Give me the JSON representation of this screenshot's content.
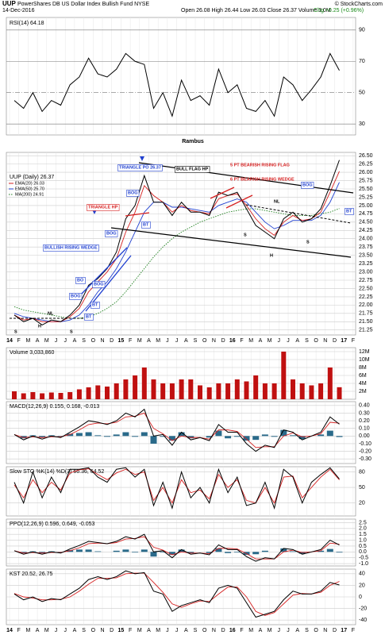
{
  "header": {
    "symbol": "UUP",
    "name": "PowerShares DB US Dollar Index Bullish Fund NYSE",
    "date": "14-Dec-2016",
    "quote": "Open 26.08 High 26.44 Low 26.03 Close 26.37 Volume 3.0M",
    "change": "Chg +0.25 (+0.96%)",
    "copyright": "© StockCharts.com"
  },
  "chart_data": [
    {
      "type": "line",
      "title": "RSI(14) 64.18",
      "annotation": "Rambus",
      "color": "#000000",
      "grid": true,
      "values": [
        45,
        40,
        50,
        38,
        45,
        42,
        55,
        60,
        72,
        62,
        60,
        65,
        75,
        70,
        68,
        40,
        50,
        35,
        58,
        45,
        48,
        42,
        65,
        50,
        55,
        40,
        38,
        45,
        35,
        60,
        55,
        45,
        52,
        60,
        75,
        64.18
      ],
      "ylim": [
        23,
        98
      ],
      "yticks": [
        30,
        50,
        70,
        90
      ]
    },
    {
      "type": "line",
      "title": "UUP (Daily) 26.37",
      "grid": true,
      "series": [
        {
          "name": "UUP (Daily) 26.37",
          "color": "#000000",
          "values": [
            21.7,
            21.5,
            21.6,
            21.4,
            21.55,
            21.5,
            21.7,
            22.0,
            22.6,
            22.8,
            23.1,
            23.6,
            24.6,
            25.0,
            25.9,
            25.1,
            25.1,
            24.7,
            25.1,
            24.8,
            24.8,
            24.7,
            25.4,
            25.3,
            25.4,
            24.9,
            24.4,
            24.2,
            24.0,
            24.6,
            24.8,
            24.5,
            24.6,
            24.9,
            25.6,
            26.37
          ]
        },
        {
          "name": "EMA(20) 26.03",
          "color": "#d62020",
          "values": [
            21.7,
            21.55,
            21.6,
            21.5,
            21.5,
            21.5,
            21.65,
            21.9,
            22.4,
            22.7,
            23.0,
            23.4,
            24.2,
            24.8,
            25.6,
            25.3,
            25.1,
            24.8,
            25.0,
            24.85,
            24.8,
            24.75,
            25.2,
            25.3,
            25.35,
            25.0,
            24.6,
            24.3,
            24.1,
            24.5,
            24.7,
            24.55,
            24.6,
            24.8,
            25.4,
            26.03
          ]
        },
        {
          "name": "EMA(50) 25.70",
          "color": "#2040d0",
          "values": [
            21.75,
            21.65,
            21.6,
            21.55,
            21.5,
            21.5,
            21.55,
            21.7,
            22.0,
            22.4,
            22.7,
            23.1,
            23.6,
            24.2,
            24.8,
            25.1,
            25.1,
            24.95,
            24.95,
            24.9,
            24.85,
            24.8,
            25.0,
            25.1,
            25.2,
            25.1,
            24.8,
            24.5,
            24.3,
            24.4,
            24.55,
            24.55,
            24.55,
            24.7,
            25.1,
            25.7
          ]
        },
        {
          "name": "MA(200) 24.91",
          "color": "#208020",
          "style": "dotted",
          "values": [
            21.95,
            21.85,
            21.8,
            21.75,
            21.7,
            21.65,
            21.6,
            21.6,
            21.65,
            21.75,
            21.9,
            22.1,
            22.4,
            22.75,
            23.1,
            23.45,
            23.75,
            24.0,
            24.2,
            24.35,
            24.5,
            24.6,
            24.7,
            24.8,
            24.85,
            24.9,
            24.9,
            24.85,
            24.8,
            24.75,
            24.7,
            24.7,
            24.7,
            24.75,
            24.8,
            24.91
          ]
        }
      ],
      "annotations": [
        "TRIANGLE PO 26.37",
        "BULL FLAG HP",
        "5 PT BEARISH RISING FLAG",
        "6 PT BEARISH RISING WEDGE",
        "TRIANGLE HP",
        "BULLISH RISING WEDGE",
        "BOG",
        "BOG",
        "BO",
        "BOG",
        "BOG",
        "BOG",
        "BT",
        "BT",
        "BT",
        "BT",
        "NL",
        "NL",
        "S",
        "S",
        "S",
        "S",
        "H",
        "H"
      ],
      "x_labels": [
        "14",
        "F",
        "M",
        "A",
        "M",
        "J",
        "J",
        "A",
        "S",
        "O",
        "N",
        "D",
        "15",
        "F",
        "M",
        "A",
        "M",
        "J",
        "J",
        "A",
        "S",
        "O",
        "N",
        "D",
        "16",
        "F",
        "M",
        "A",
        "M",
        "J",
        "J",
        "A",
        "S",
        "O",
        "N",
        "D",
        "17",
        "F"
      ],
      "ylim": [
        21.1,
        26.6
      ],
      "yticks": [
        21.25,
        {
          "value": 21.5,
          "label": "21.50"
        },
        21.75,
        {
          "value": 22,
          "label": "22.00"
        },
        22.25,
        {
          "value": 22.5,
          "label": "22.50"
        },
        22.75,
        {
          "value": 23,
          "label": "23.00"
        },
        23.25,
        {
          "value": 23.5,
          "label": "23.50"
        },
        23.75,
        {
          "value": 24,
          "label": "24.00"
        },
        24.25,
        {
          "value": 24.5,
          "label": "24.50"
        },
        24.75,
        {
          "value": 25,
          "label": "25.00"
        },
        25.25,
        {
          "value": 25.5,
          "label": "25.50"
        },
        25.75,
        {
          "value": 26,
          "label": "26.00"
        },
        26.25,
        {
          "value": 26.5,
          "label": "26.50"
        }
      ]
    },
    {
      "type": "bar",
      "title": "Volume 3,033,860",
      "color": "#c01010",
      "grid": true,
      "values": [
        2000000,
        1500000,
        1800000,
        1500000,
        1700000,
        1600000,
        1800000,
        2500000,
        3000000,
        3500000,
        3200000,
        4000000,
        5000000,
        6000000,
        8000000,
        5000000,
        4000000,
        4000000,
        5000000,
        5000000,
        3500000,
        3000000,
        4000000,
        4000000,
        5000000,
        4500000,
        6000000,
        4000000,
        4000000,
        12000000,
        5000000,
        4000000,
        3500000,
        4000000,
        8000000,
        3033860
      ],
      "ylim": [
        0,
        13000000
      ],
      "yticks": [
        {
          "value": 2000000,
          "label": "2M"
        },
        {
          "value": 4000000,
          "label": "4M"
        },
        {
          "value": 6000000,
          "label": "6M"
        },
        {
          "value": 8000000,
          "label": "8M"
        },
        {
          "value": 10000000,
          "label": "10M"
        },
        {
          "value": 12000000,
          "label": "12M"
        }
      ]
    },
    {
      "type": "line",
      "title": "MACD(12,26,9) 0.155, 0.168, -0.013",
      "grid": true,
      "histogram": true,
      "histogram_color": "#2a6a8a",
      "series": [
        {
          "color": "#000000",
          "values": [
            0.02,
            -0.05,
            0.0,
            -0.04,
            0.0,
            -0.02,
            0.05,
            0.12,
            0.2,
            0.18,
            0.15,
            0.2,
            0.3,
            0.25,
            0.35,
            0.0,
            0.02,
            -0.12,
            0.05,
            -0.05,
            -0.02,
            -0.06,
            0.15,
            0.05,
            0.05,
            -0.1,
            -0.2,
            -0.12,
            -0.15,
            0.08,
            0.05,
            -0.05,
            0.0,
            0.05,
            0.25,
            0.155
          ]
        },
        {
          "color": "#d62020",
          "values": [
            0.02,
            -0.02,
            -0.01,
            -0.02,
            -0.01,
            -0.01,
            0.02,
            0.08,
            0.15,
            0.17,
            0.16,
            0.18,
            0.25,
            0.26,
            0.3,
            0.1,
            0.03,
            -0.06,
            0.0,
            -0.02,
            -0.02,
            -0.04,
            0.08,
            0.08,
            0.06,
            -0.04,
            -0.15,
            -0.14,
            -0.14,
            0.0,
            0.04,
            -0.01,
            0.0,
            0.03,
            0.18,
            0.168
          ]
        }
      ],
      "ylim": [
        -0.36,
        0.45
      ],
      "yticks": [
        {
          "value": 0.4,
          "label": "0.40"
        },
        {
          "value": 0.3,
          "label": "0.30"
        },
        {
          "value": 0.2,
          "label": "0.20"
        },
        {
          "value": 0.1,
          "label": "0.10"
        },
        {
          "value": 0,
          "label": "0.00"
        },
        {
          "value": -0.1,
          "label": "-0.10"
        },
        {
          "value": -0.2,
          "label": "-0.20"
        },
        {
          "value": -0.3,
          "label": "-0.30"
        }
      ]
    },
    {
      "type": "line",
      "title": "Slow STO %K(14) %D(3) 66.36, 64.52",
      "grid": true,
      "series": [
        {
          "color": "#000000",
          "values": [
            60,
            20,
            80,
            30,
            70,
            40,
            85,
            85,
            88,
            70,
            60,
            85,
            88,
            70,
            85,
            15,
            60,
            10,
            80,
            30,
            50,
            20,
            85,
            40,
            70,
            15,
            20,
            60,
            10,
            85,
            70,
            20,
            60,
            75,
            88,
            66.36
          ]
        },
        {
          "color": "#d62020",
          "values": [
            55,
            30,
            65,
            40,
            60,
            45,
            78,
            84,
            86,
            75,
            65,
            78,
            85,
            75,
            80,
            25,
            50,
            20,
            65,
            40,
            45,
            28,
            75,
            50,
            65,
            25,
            20,
            50,
            20,
            70,
            72,
            30,
            50,
            70,
            85,
            64.52
          ]
        }
      ],
      "ylim": [
        -5,
        90
      ],
      "yticks": [
        20,
        50,
        80
      ]
    },
    {
      "type": "line",
      "title": "PPO(12,26,9) 0.596, 0.649, -0.053",
      "grid": true,
      "histogram": true,
      "histogram_color": "#2a6a8a",
      "series": [
        {
          "color": "#000000",
          "values": [
            0.1,
            -0.2,
            0,
            -0.2,
            0,
            -0.1,
            0.25,
            0.55,
            0.9,
            0.8,
            0.7,
            0.9,
            1.3,
            1.1,
            1.5,
            0,
            0.1,
            -0.5,
            0.2,
            -0.2,
            -0.1,
            -0.25,
            0.6,
            0.2,
            0.2,
            -0.4,
            -0.8,
            -0.5,
            -0.6,
            0.3,
            0.2,
            -0.2,
            0,
            0.2,
            1.0,
            0.596
          ]
        },
        {
          "color": "#d62020",
          "values": [
            0.1,
            -0.1,
            -0.05,
            -0.1,
            -0.05,
            -0.05,
            0.1,
            0.35,
            0.7,
            0.75,
            0.7,
            0.8,
            1.1,
            1.15,
            1.3,
            0.4,
            0.15,
            -0.25,
            0,
            -0.1,
            -0.1,
            -0.15,
            0.3,
            0.3,
            0.25,
            -0.15,
            -0.6,
            -0.6,
            -0.6,
            0,
            0.15,
            -0.05,
            0,
            0.1,
            0.75,
            0.649
          ]
        }
      ],
      "ylim": [
        -1.2,
        2.8
      ],
      "yticks": [
        2.5,
        {
          "value": 2,
          "label": "2.0"
        },
        1.5,
        {
          "value": 1,
          "label": "1.0"
        },
        0.5,
        {
          "value": 0,
          "label": "0.0"
        },
        -0.5,
        {
          "value": -1,
          "label": "-1.0"
        }
      ]
    },
    {
      "type": "line",
      "title": "KST 20.52, 26.75",
      "grid": true,
      "series": [
        {
          "color": "#000000",
          "values": [
            5,
            -5,
            0,
            -8,
            -3,
            -5,
            5,
            15,
            30,
            35,
            30,
            35,
            45,
            40,
            42,
            10,
            5,
            -25,
            -15,
            -10,
            -5,
            -10,
            15,
            20,
            15,
            -10,
            -35,
            -30,
            -25,
            -5,
            10,
            5,
            5,
            10,
            25,
            20.52
          ]
        },
        {
          "color": "#d62020",
          "values": [
            6,
            0,
            -2,
            -5,
            -5,
            -4,
            0,
            10,
            22,
            32,
            32,
            33,
            40,
            41,
            41,
            25,
            8,
            -12,
            -18,
            -12,
            -7,
            -8,
            5,
            17,
            17,
            0,
            -25,
            -32,
            -27,
            -12,
            3,
            6,
            5,
            8,
            20,
            26.75
          ]
        }
      ],
      "x_labels": [
        "14",
        "F",
        "M",
        "A",
        "M",
        "J",
        "J",
        "A",
        "S",
        "O",
        "N",
        "D",
        "15",
        "F",
        "M",
        "A",
        "M",
        "J",
        "J",
        "A",
        "S",
        "O",
        "N",
        "D",
        "16",
        "F",
        "M",
        "A",
        "M",
        "J",
        "J",
        "A",
        "S",
        "O",
        "N",
        "D",
        "17",
        "F"
      ],
      "ylim": [
        -48,
        48
      ],
      "yticks": [
        40,
        20,
        0,
        -20,
        -40
      ]
    }
  ]
}
